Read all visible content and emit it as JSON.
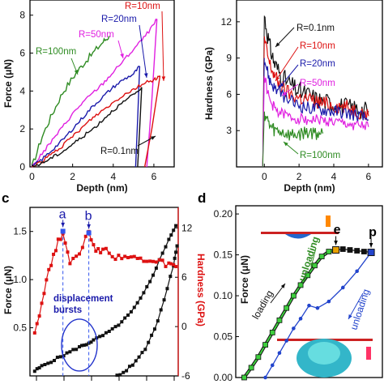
{
  "chart_data": [
    {
      "panel_id": "top-left",
      "panel_label": "",
      "type": "line",
      "xlabel": "Depth (nm)",
      "ylabel": "Force (μN)",
      "xlim": [
        -0.1,
        7.0
      ],
      "ylim": [
        0,
        8.8
      ],
      "x_ticks": [
        0,
        2,
        4,
        6
      ],
      "y_ticks": [
        0,
        2,
        4,
        6,
        8
      ],
      "series": [
        {
          "name": "R=100nm",
          "color": "#2e8b22",
          "loading": [
            [
              0,
              0
            ],
            [
              0.5,
              1.6
            ],
            [
              1,
              2.8
            ],
            [
              1.5,
              3.9
            ],
            [
              2,
              4.7
            ],
            [
              2.5,
              5.4
            ],
            [
              3,
              6.0
            ],
            [
              3.5,
              6.6
            ],
            [
              3.8,
              6.9
            ]
          ],
          "unloading": []
        },
        {
          "name": "R=50nm",
          "color": "#e020e0",
          "loading": [
            [
              0,
              0
            ],
            [
              0.5,
              0.7
            ],
            [
              1,
              1.4
            ],
            [
              1.5,
              2.1
            ],
            [
              2,
              2.8
            ],
            [
              2.5,
              3.4
            ],
            [
              3,
              3.9
            ],
            [
              3.5,
              4.4
            ],
            [
              4,
              5.0
            ],
            [
              4.5,
              5.6
            ],
            [
              5,
              6.2
            ],
            [
              5.5,
              6.8
            ],
            [
              6.0,
              7.5
            ],
            [
              6.15,
              7.8
            ]
          ],
          "unloading": [
            [
              6.15,
              7.8
            ],
            [
              5.9,
              3.5
            ],
            [
              5.65,
              0
            ]
          ]
        },
        {
          "name": "R=20nm",
          "color": "#1a1aaa",
          "loading": [
            [
              0,
              0
            ],
            [
              0.5,
              0.4
            ],
            [
              1,
              0.9
            ],
            [
              1.5,
              1.4
            ],
            [
              2,
              2.0
            ],
            [
              2.5,
              2.6
            ],
            [
              3,
              3.2
            ],
            [
              3.5,
              3.7
            ],
            [
              4,
              4.2
            ],
            [
              4.5,
              4.6
            ],
            [
              5,
              4.9
            ],
            [
              5.3,
              5.3
            ]
          ],
          "unloading": [
            [
              5.3,
              5.3
            ],
            [
              5.2,
              2.5
            ],
            [
              5.1,
              0
            ]
          ]
        },
        {
          "name": "R=10nm",
          "color": "#dd1111",
          "loading": [
            [
              0,
              0
            ],
            [
              0.5,
              0.3
            ],
            [
              1,
              0.7
            ],
            [
              1.5,
              1.1
            ],
            [
              2,
              1.6
            ],
            [
              2.5,
              2.1
            ],
            [
              3,
              2.6
            ],
            [
              3.5,
              3.0
            ],
            [
              4,
              3.4
            ],
            [
              4.5,
              3.8
            ],
            [
              5,
              4.1
            ],
            [
              5.5,
              4.4
            ],
            [
              6,
              4.6
            ],
            [
              6.3,
              4.8
            ]
          ],
          "unloading": [
            [
              6.3,
              4.8
            ],
            [
              5.9,
              2.0
            ],
            [
              5.55,
              0
            ]
          ]
        },
        {
          "name": "R=0.1nm",
          "color": "#111111",
          "loading": [
            [
              0,
              0
            ],
            [
              0.5,
              0.2
            ],
            [
              1,
              0.5
            ],
            [
              1.5,
              0.8
            ],
            [
              2,
              1.2
            ],
            [
              2.5,
              1.6
            ],
            [
              3,
              2.0
            ],
            [
              3.5,
              2.5
            ],
            [
              4,
              3.0
            ],
            [
              4.5,
              3.4
            ],
            [
              5,
              3.8
            ],
            [
              5.4,
              4.2
            ]
          ],
          "unloading": [
            [
              5.4,
              4.2
            ],
            [
              5.3,
              2.0
            ],
            [
              5.2,
              0
            ]
          ]
        }
      ],
      "legend_labels": [
        {
          "text": "R=10nm",
          "color": "#dd1111"
        },
        {
          "text": "R=20nm",
          "color": "#1a1aaa"
        },
        {
          "text": "R=50nm",
          "color": "#e020e0"
        },
        {
          "text": "R=100nm",
          "color": "#2e8b22"
        },
        {
          "text": "R=0.1nm",
          "color": "#111111"
        }
      ]
    },
    {
      "panel_id": "top-right",
      "panel_label": "",
      "type": "line",
      "xlabel": "Depth (nm)",
      "ylabel": "Hardness (GPa)",
      "xlim": [
        -1.6,
        6.8
      ],
      "ylim": [
        0,
        13.8
      ],
      "x_ticks": [
        0,
        2,
        4,
        6
      ],
      "y_ticks": [
        3,
        6,
        9,
        12
      ],
      "series": [
        {
          "name": "R=0.1nm",
          "color": "#111111",
          "values": [
            [
              0,
              12.5
            ],
            [
              0.3,
              10.0
            ],
            [
              0.6,
              8.5
            ],
            [
              1,
              7.5
            ],
            [
              1.5,
              6.8
            ],
            [
              2,
              6.2
            ],
            [
              2.5,
              6.0
            ],
            [
              3,
              5.6
            ],
            [
              3.5,
              5.4
            ],
            [
              4,
              5.2
            ],
            [
              4.5,
              5.0
            ],
            [
              5,
              4.9
            ],
            [
              5.5,
              4.8
            ],
            [
              6,
              4.6
            ]
          ]
        },
        {
          "name": "R=10nm",
          "color": "#dd1111",
          "values": [
            [
              0,
              10.5
            ],
            [
              0.3,
              8.5
            ],
            [
              0.6,
              7.5
            ],
            [
              1,
              6.5
            ],
            [
              1.5,
              6.0
            ],
            [
              2,
              5.7
            ],
            [
              2.5,
              5.6
            ],
            [
              3,
              5.4
            ],
            [
              3.5,
              5.2
            ],
            [
              4,
              5.1
            ],
            [
              4.5,
              5.0
            ],
            [
              5,
              4.8
            ],
            [
              5.5,
              4.6
            ],
            [
              6,
              4.2
            ]
          ]
        },
        {
          "name": "R=20nm",
          "color": "#1a1aaa",
          "values": [
            [
              0,
              9.0
            ],
            [
              0.3,
              7.2
            ],
            [
              0.6,
              6.5
            ],
            [
              1,
              6.0
            ],
            [
              1.5,
              5.4
            ],
            [
              2,
              5.1
            ],
            [
              2.5,
              4.9
            ],
            [
              3,
              4.8
            ],
            [
              3.5,
              4.7
            ],
            [
              4,
              4.6
            ],
            [
              4.5,
              4.5
            ],
            [
              5,
              4.4
            ],
            [
              5.5,
              4.2
            ],
            [
              6,
              3.9
            ]
          ]
        },
        {
          "name": "R=50nm",
          "color": "#e020e0",
          "values": [
            [
              0,
              7.5
            ],
            [
              0.3,
              5.5
            ],
            [
              0.6,
              4.8
            ],
            [
              1,
              4.4
            ],
            [
              1.5,
              4.1
            ],
            [
              2,
              4.0
            ],
            [
              2.5,
              3.9
            ],
            [
              3,
              3.9
            ],
            [
              3.5,
              3.8
            ],
            [
              4,
              3.7
            ],
            [
              4.5,
              3.6
            ],
            [
              5,
              3.5
            ],
            [
              5.5,
              3.4
            ],
            [
              6,
              3.3
            ]
          ]
        },
        {
          "name": "R=100nm",
          "color": "#2e8b22",
          "values": [
            [
              0,
              4.5
            ],
            [
              0.3,
              3.4
            ],
            [
              0.6,
              3.0
            ],
            [
              1,
              2.9
            ],
            [
              1.5,
              2.6
            ],
            [
              2,
              2.7
            ],
            [
              2.5,
              2.9
            ],
            [
              3,
              2.8
            ],
            [
              3.4,
              2.8
            ]
          ]
        }
      ],
      "legend_labels": [
        {
          "text": "R=0.1nm",
          "color": "#111111"
        },
        {
          "text": "R=10nm",
          "color": "#dd1111"
        },
        {
          "text": "R=20nm",
          "color": "#1a1aaa"
        },
        {
          "text": "R=50nm",
          "color": "#e020e0"
        },
        {
          "text": "R=100nm",
          "color": "#2e8b22"
        }
      ]
    },
    {
      "panel_id": "c",
      "panel_label": "c",
      "type": "line",
      "ylabel": "Force (μN)",
      "y2label": "Hardness (GPa)",
      "xlim": [
        0.1,
        6.4
      ],
      "ylim": [
        0,
        1.75
      ],
      "y_ticks": [
        0.5,
        1.0,
        1.5
      ],
      "y_tick_labels": [
        "0.5",
        "1.0",
        "1.5"
      ],
      "y2lim": [
        -6,
        14.5
      ],
      "y2_ticks": [
        -6,
        0,
        6,
        12
      ],
      "y2_tick_labels": [
        "-6",
        "0",
        "6",
        "12"
      ],
      "series": [
        {
          "name": "Force",
          "axis": "left",
          "color": "#111111",
          "values": [
            [
              0.3,
              0.05
            ],
            [
              0.6,
              0.1
            ],
            [
              1.0,
              0.15
            ],
            [
              1.4,
              0.2
            ],
            [
              1.8,
              0.25
            ],
            [
              2.2,
              0.3
            ],
            [
              2.5,
              0.33
            ],
            [
              2.8,
              0.37
            ],
            [
              3.2,
              0.42
            ],
            [
              3.6,
              0.48
            ],
            [
              4.0,
              0.56
            ],
            [
              4.4,
              0.66
            ],
            [
              4.8,
              0.8
            ],
            [
              5.2,
              0.98
            ],
            [
              5.6,
              1.2
            ],
            [
              6.0,
              1.42
            ],
            [
              6.3,
              1.56
            ]
          ]
        },
        {
          "name": "Force",
          "axis": "left",
          "color": "#111111",
          "values": [
            [
              3.8,
              0.0
            ],
            [
              4.2,
              0.06
            ],
            [
              4.6,
              0.15
            ],
            [
              5.0,
              0.28
            ],
            [
              5.4,
              0.48
            ],
            [
              5.8,
              0.78
            ],
            [
              6.2,
              1.15
            ],
            [
              6.35,
              1.35
            ]
          ]
        },
        {
          "name": "Hardness",
          "axis": "right",
          "color": "#dd1111",
          "values": [
            [
              0.3,
              -0.6
            ],
            [
              0.6,
              2.8
            ],
            [
              0.9,
              6.8
            ],
            [
              1.2,
              9.6
            ],
            [
              1.5,
              11.6
            ],
            [
              1.8,
              7.8
            ],
            [
              2.2,
              9.2
            ],
            [
              2.6,
              11.4
            ],
            [
              2.9,
              9.0
            ],
            [
              3.2,
              9.4
            ],
            [
              3.6,
              8.5
            ],
            [
              4.0,
              8.6
            ],
            [
              4.4,
              8.3
            ],
            [
              4.8,
              8.1
            ],
            [
              5.2,
              7.8
            ],
            [
              5.6,
              7.8
            ],
            [
              6.0,
              7.5
            ],
            [
              6.3,
              7.3
            ]
          ]
        }
      ],
      "markers": [
        {
          "text": "a",
          "x": 1.5,
          "y2": 11.6
        },
        {
          "text": "b",
          "x": 2.6,
          "y2": 11.4
        }
      ],
      "annotation_lines": [
        "displacement",
        "bursts"
      ]
    },
    {
      "panel_id": "d",
      "panel_label": "d",
      "type": "line",
      "ylabel": "Force (μN)",
      "xlim": [
        0,
        5.2
      ],
      "ylim": [
        0,
        0.21
      ],
      "y_ticks": [
        0.0,
        0.05,
        0.1,
        0.15,
        0.2
      ],
      "y_tick_labels": [
        "0.00",
        "0.05",
        "0.10",
        "0.15",
        "0.20"
      ],
      "series": [
        {
          "name": "loading",
          "color": "#111111",
          "marker_fill": "#3ecf3e",
          "values": [
            [
              0.3,
              0.0
            ],
            [
              0.55,
              0.012
            ],
            [
              0.8,
              0.025
            ],
            [
              1.05,
              0.04
            ],
            [
              1.3,
              0.055
            ],
            [
              1.55,
              0.07
            ],
            [
              1.8,
              0.085
            ],
            [
              2.05,
              0.1
            ],
            [
              2.3,
              0.113
            ],
            [
              2.55,
              0.125
            ],
            [
              2.8,
              0.137
            ],
            [
              3.05,
              0.148
            ],
            [
              3.3,
              0.154
            ],
            [
              3.55,
              0.156
            ]
          ]
        },
        {
          "name": "plateau",
          "color": "#111111",
          "marker_fill": "#111111",
          "values": [
            [
              3.55,
              0.156
            ],
            [
              3.8,
              0.157
            ],
            [
              4.05,
              0.156
            ],
            [
              4.3,
              0.155
            ],
            [
              4.55,
              0.154
            ],
            [
              4.8,
              0.153
            ]
          ]
        },
        {
          "name": "unloading",
          "color": "#2244cc",
          "marker_fill": "#2244cc",
          "values": [
            [
              4.8,
              0.153
            ],
            [
              4.3,
              0.13
            ],
            [
              3.8,
              0.11
            ],
            [
              3.3,
              0.093
            ],
            [
              2.9,
              0.085
            ],
            [
              2.6,
              0.088
            ],
            [
              2.3,
              0.072
            ],
            [
              2.05,
              0.06
            ],
            [
              1.8,
              0.045
            ],
            [
              1.55,
              0.03
            ],
            [
              1.3,
              0.015
            ],
            [
              1.05,
              0.0
            ]
          ]
        }
      ],
      "markers": [
        {
          "text": "e",
          "x": 3.55,
          "y": 0.156,
          "color": "#e8a000"
        },
        {
          "text": "p",
          "x": 4.8,
          "y": 0.153,
          "color": "#2244cc"
        }
      ],
      "annotations": [
        {
          "text": "loading",
          "color": "#111111"
        },
        {
          "text": "unloading",
          "color": "#2e8b22"
        },
        {
          "text": "unloading",
          "color": "#2244cc"
        }
      ]
    }
  ]
}
